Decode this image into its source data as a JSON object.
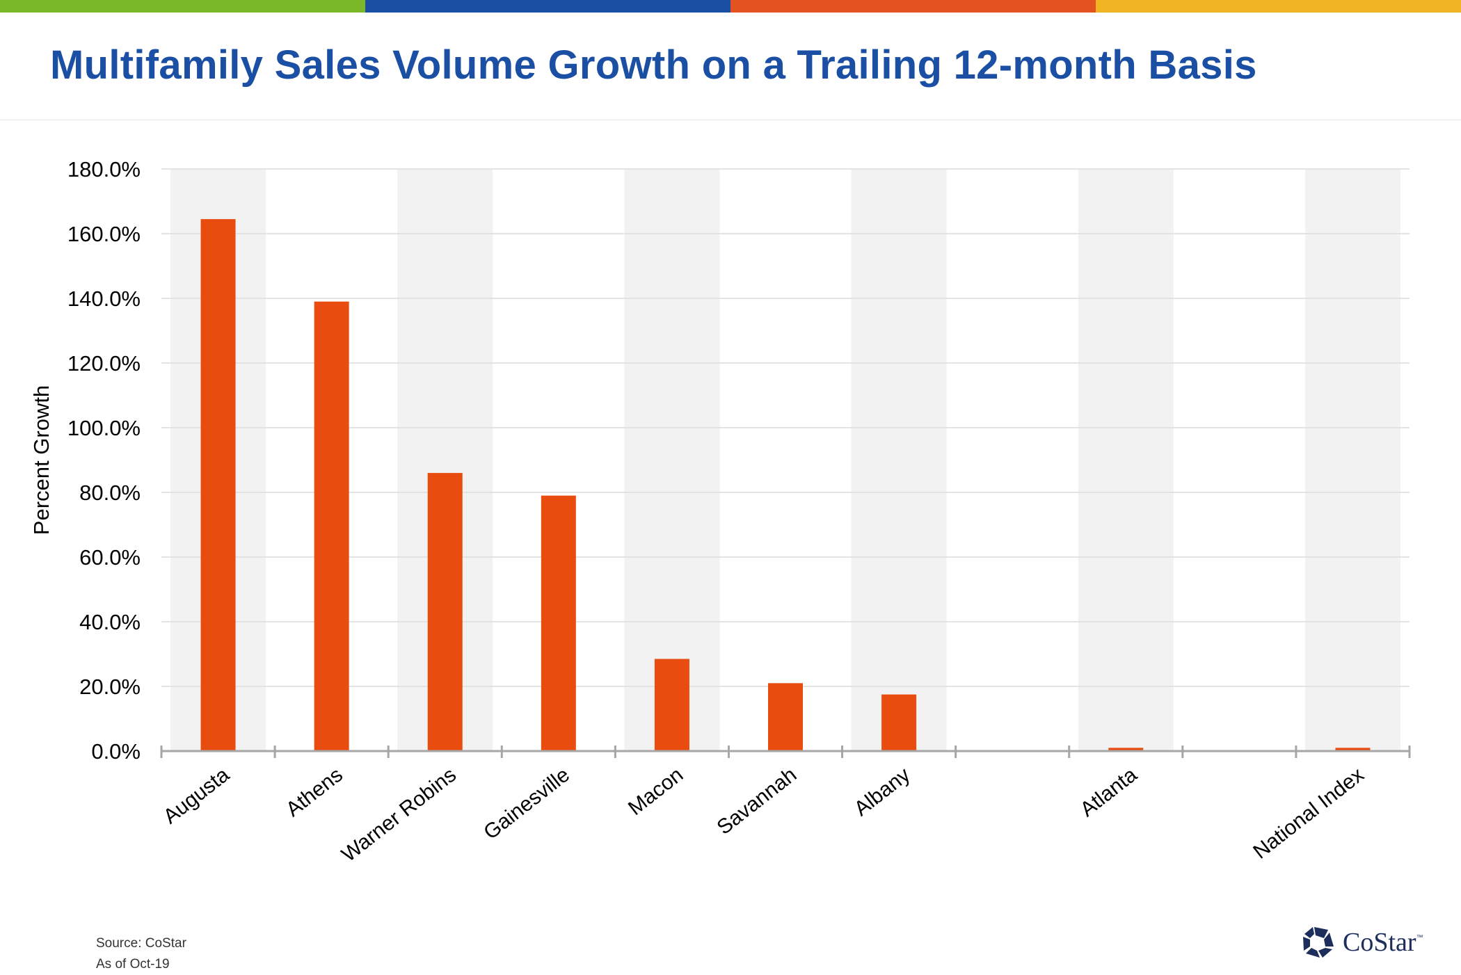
{
  "header": {
    "title": "Multifamily Sales Volume Growth on a Trailing 12-month Basis",
    "accent_colors": [
      "#7ab828",
      "#1a4fa3",
      "#e2531f",
      "#f0b322"
    ],
    "title_color": "#1a4fa3"
  },
  "chart_data": {
    "type": "bar",
    "categories": [
      "Augusta",
      "Athens",
      "Warner Robins",
      "Gainesville",
      "Macon",
      "Savannah",
      "Albany",
      "",
      "Atlanta",
      "",
      "National Index"
    ],
    "values": [
      164.5,
      139.0,
      86.0,
      79.0,
      28.5,
      21.0,
      17.5,
      null,
      1.0,
      null,
      1.0
    ],
    "ylabel": "Percent Growth",
    "ylim": [
      0,
      180
    ],
    "yticks": [
      "0.0%",
      "20.0%",
      "40.0%",
      "60.0%",
      "80.0%",
      "100.0%",
      "120.0%",
      "140.0%",
      "160.0%",
      "180.0%"
    ],
    "grid": true,
    "bar_color": "#e84c0e",
    "band_color": "#f2f2f2"
  },
  "footer": {
    "source": "Source: CoStar",
    "as_of": "As of Oct-19",
    "logo_text": "CoStar",
    "logo_tm": "™"
  }
}
